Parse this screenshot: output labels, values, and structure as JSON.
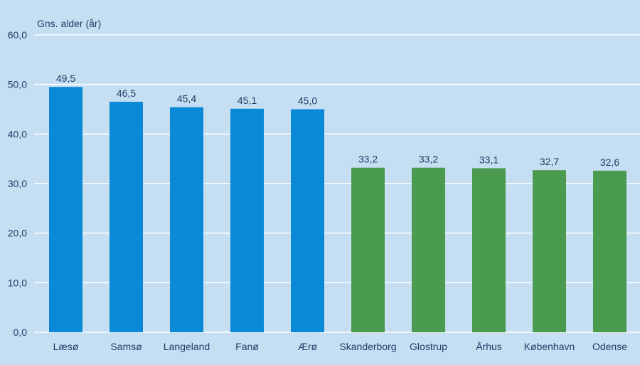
{
  "chart_data": {
    "type": "bar",
    "ylabel": "Gns. alder (år)",
    "ylim": [
      0,
      60
    ],
    "yticks": [
      "0,0",
      "10,0",
      "20,0",
      "30,0",
      "40,0",
      "50,0",
      "60,0"
    ],
    "grid": true,
    "categories": [
      "Læsø",
      "Samsø",
      "Langeland",
      "Fanø",
      "Ærø",
      "Skanderborg",
      "Glostrup",
      "Århus",
      "København",
      "Odense"
    ],
    "values": [
      49.5,
      46.5,
      45.4,
      45.1,
      45.0,
      33.2,
      33.2,
      33.1,
      32.7,
      32.6
    ],
    "value_labels": [
      "49,5",
      "46,5",
      "45,4",
      "45,1",
      "45,0",
      "33,2",
      "33,2",
      "33,1",
      "32,7",
      "32,6"
    ],
    "bar_colors": [
      "#0a8ad6",
      "#0a8ad6",
      "#0a8ad6",
      "#0a8ad6",
      "#0a8ad6",
      "#4a9a50",
      "#4a9a50",
      "#4a9a50",
      "#4a9a50",
      "#4a9a50"
    ]
  },
  "colors": {
    "background": "#c5def2",
    "gridline": "#ffffff",
    "text": "#1d3f66"
  }
}
